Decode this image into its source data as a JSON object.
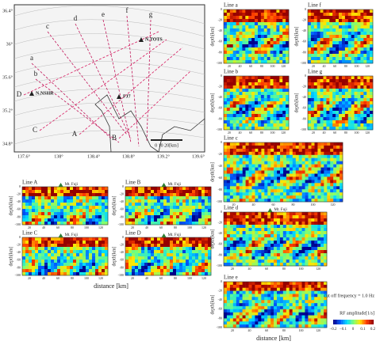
{
  "map": {
    "lat_ticks": [
      "36.4°",
      "36°",
      "35.6°",
      "35.2°",
      "34.8°"
    ],
    "lon_ticks": [
      "137.6°",
      "138°",
      "138.4°",
      "138.8°",
      "139.2°",
      "139.6°"
    ],
    "line_labels": [
      "a",
      "b",
      "c",
      "d",
      "e",
      "f",
      "g",
      "A",
      "B",
      "C",
      "D"
    ],
    "stations": [
      "N.TOTS",
      "N.NSHR",
      "FJ7"
    ],
    "scale": "0 10 20[km]"
  },
  "panels": {
    "a": "Line a",
    "f": "Line f",
    "b": "Line b",
    "g": "Line g",
    "c": "Line c",
    "d": "Line d",
    "e": "Line e",
    "A": "Line A",
    "B": "Line B",
    "C": "Line C",
    "D": "Line D"
  },
  "axes": {
    "depth_label": "depth[km]",
    "distance_label": "distance [km]",
    "depth_ticks": [
      "0",
      "-20",
      "-40",
      "-60",
      "-80",
      "-100"
    ],
    "distance_ticks": [
      "20",
      "40",
      "60",
      "80",
      "100",
      "120"
    ],
    "fuji": "Mt. Fuji"
  },
  "legend": {
    "cutoff": "cut off frequency = 1.0 Hz",
    "amplitude": "RF amplitude[1/s]",
    "ticks": [
      "−0.2",
      "−0.1",
      "0",
      "0.1",
      "0.2"
    ]
  }
}
